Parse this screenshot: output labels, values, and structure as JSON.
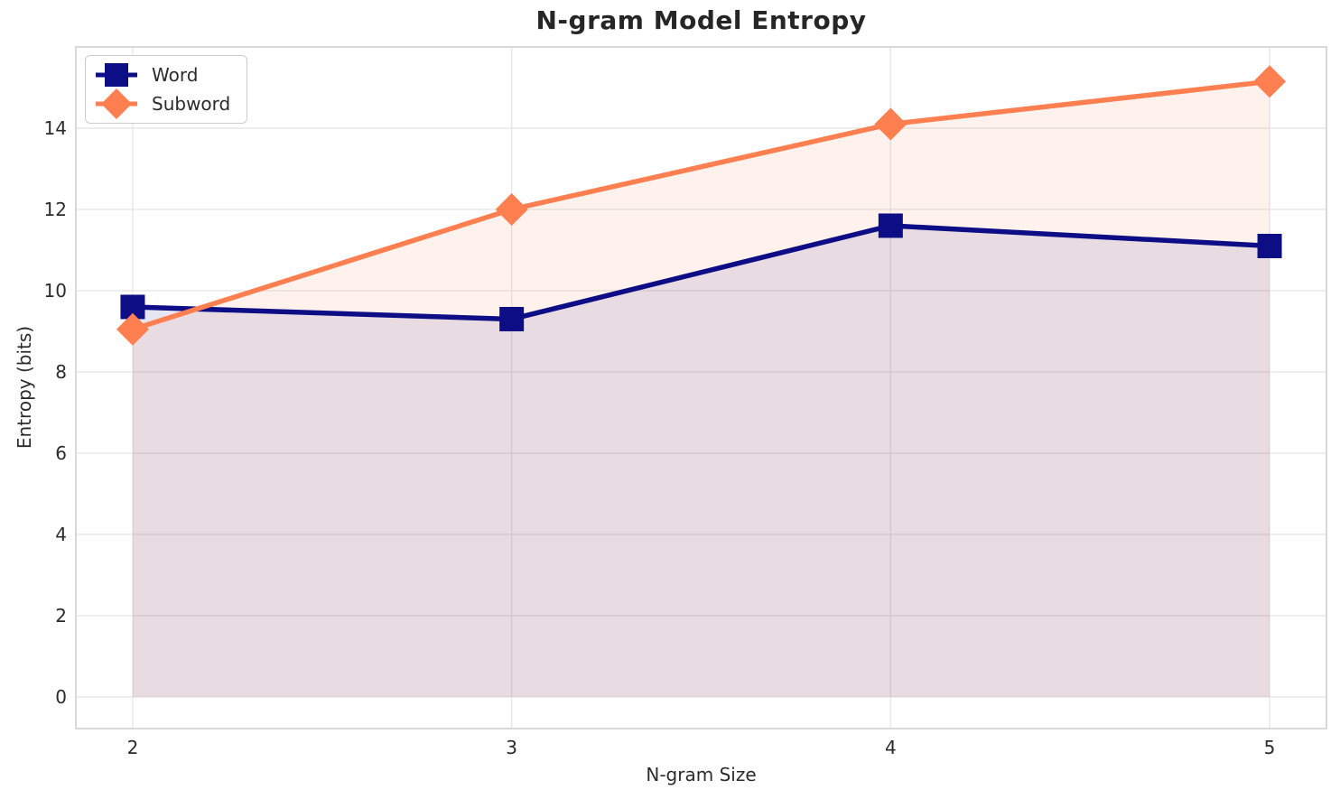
{
  "chart_data": {
    "type": "line",
    "title": "N-gram Model Entropy",
    "xlabel": "N-gram Size",
    "ylabel": "Entropy (bits)",
    "x": [
      2,
      3,
      4,
      5
    ],
    "series": [
      {
        "name": "Word",
        "marker": "square",
        "color": "#0d0d86",
        "fill_opacity": 0.1,
        "values": [
          9.6,
          9.3,
          11.6,
          11.1
        ]
      },
      {
        "name": "Subword",
        "marker": "diamond",
        "color": "#ff7f50",
        "fill_opacity": 0.1,
        "values": [
          9.05,
          12.0,
          14.1,
          15.15
        ]
      }
    ],
    "xticks": [
      2,
      3,
      4,
      5
    ],
    "yticks": [
      0,
      2,
      4,
      6,
      8,
      10,
      12,
      14
    ],
    "xlim": [
      1.85,
      5.15
    ],
    "ylim": [
      -0.78,
      16.0
    ],
    "grid": true,
    "fill_to_zero": true,
    "legend_position": "upper-left",
    "colors": {
      "grid": "#e7e7e7",
      "spine": "#d9d9d9",
      "text": "#2b2b2b",
      "title": "#262626",
      "background": "#ffffff"
    }
  }
}
